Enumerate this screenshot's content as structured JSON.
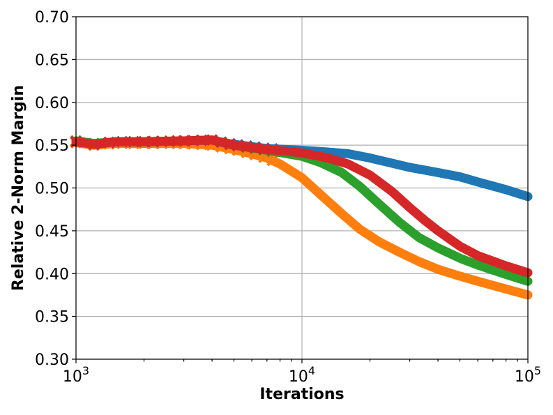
{
  "chart_data": {
    "type": "line",
    "xscale": "log",
    "xlim": [
      1000,
      100000
    ],
    "ylim": [
      0.3,
      0.7
    ],
    "xlabel": "Iterations",
    "ylabel": "Relative 2-Norm Margin",
    "grid": true,
    "x_ticks": [
      {
        "value": 1000,
        "base": "10",
        "exp": "3"
      },
      {
        "value": 10000,
        "base": "10",
        "exp": "4"
      },
      {
        "value": 100000,
        "base": "10",
        "exp": "5"
      }
    ],
    "y_ticks": [
      "0.30",
      "0.35",
      "0.40",
      "0.45",
      "0.50",
      "0.55",
      "0.60",
      "0.65",
      "0.70"
    ],
    "series": [
      {
        "color": "#1f77b4",
        "x": [
          1000,
          1200,
          1500,
          2000,
          3000,
          4000,
          5000,
          7000,
          10000,
          13000,
          16000,
          20000,
          25000,
          30000,
          40000,
          50000,
          60000,
          80000,
          100000
        ],
        "y": [
          0.553,
          0.55,
          0.553,
          0.553,
          0.554,
          0.555,
          0.551,
          0.546,
          0.544,
          0.542,
          0.54,
          0.535,
          0.529,
          0.524,
          0.518,
          0.513,
          0.507,
          0.498,
          0.49
        ]
      },
      {
        "color": "#ff7f0e",
        "x": [
          1000,
          1200,
          1500,
          2000,
          3000,
          4000,
          5000,
          6000,
          7000,
          8000,
          10000,
          12000,
          15000,
          18000,
          22000,
          27000,
          33000,
          40000,
          50000,
          60000,
          80000,
          100000
        ],
        "y": [
          0.553,
          0.55,
          0.552,
          0.552,
          0.552,
          0.55,
          0.545,
          0.54,
          0.535,
          0.528,
          0.512,
          0.493,
          0.47,
          0.452,
          0.437,
          0.425,
          0.414,
          0.405,
          0.397,
          0.391,
          0.382,
          0.375
        ]
      },
      {
        "color": "#2ca02c",
        "x": [
          1000,
          1200,
          1500,
          2000,
          3000,
          4000,
          5000,
          7000,
          10000,
          12000,
          15000,
          18000,
          22000,
          27000,
          33000,
          40000,
          50000,
          60000,
          80000,
          100000
        ],
        "y": [
          0.555,
          0.552,
          0.554,
          0.554,
          0.555,
          0.556,
          0.55,
          0.544,
          0.537,
          0.53,
          0.518,
          0.502,
          0.481,
          0.46,
          0.442,
          0.43,
          0.418,
          0.41,
          0.399,
          0.391
        ]
      },
      {
        "color": "#d62728",
        "x": [
          1000,
          1200,
          1500,
          2000,
          3000,
          4000,
          5000,
          7000,
          10000,
          13000,
          16000,
          20000,
          25000,
          30000,
          35000,
          40000,
          50000,
          60000,
          80000,
          100000
        ],
        "y": [
          0.554,
          0.551,
          0.554,
          0.554,
          0.555,
          0.556,
          0.55,
          0.545,
          0.541,
          0.535,
          0.528,
          0.515,
          0.496,
          0.477,
          0.462,
          0.45,
          0.432,
          0.421,
          0.409,
          0.401
        ]
      }
    ]
  }
}
